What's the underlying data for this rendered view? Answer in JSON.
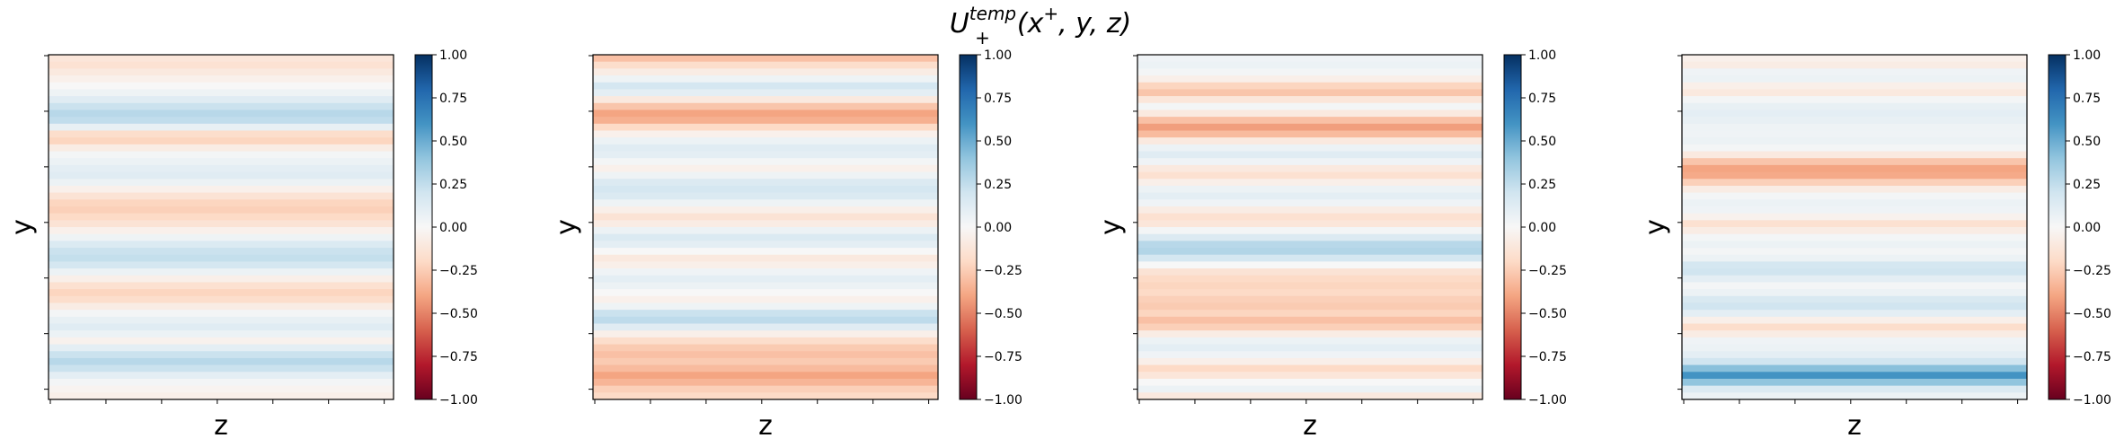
{
  "figure": {
    "title_main": "U",
    "title_sup": "temp",
    "title_sub": "+",
    "title_args_pre": "(x",
    "title_args_sup": "+",
    "title_args_post": ", y, z)"
  },
  "colormap": {
    "name": "RdBu",
    "stops": [
      "#67001f",
      "#b2182b",
      "#d6604d",
      "#f4a582",
      "#fddbc7",
      "#f7f7f7",
      "#d1e5f0",
      "#92c5de",
      "#4393c3",
      "#2166ac",
      "#053061"
    ]
  },
  "chart_data": [
    {
      "type": "heatmap",
      "xlabel": "z",
      "ylabel": "y",
      "vlim": [
        -1.0,
        1.0
      ],
      "colorbar_ticks": [
        "1.00",
        "0.75",
        "0.50",
        "0.25",
        "0.00",
        "−0.25",
        "−0.50",
        "−0.75",
        "−1.00"
      ],
      "colorbar_tick_values": [
        1.0,
        0.75,
        0.5,
        0.25,
        0.0,
        -0.25,
        -0.5,
        -0.75,
        -1.0
      ],
      "row_profile": [
        -0.12,
        -0.15,
        -0.1,
        -0.05,
        0.0,
        0.05,
        0.12,
        0.22,
        0.28,
        0.25,
        0.08,
        -0.18,
        -0.22,
        -0.08,
        0.02,
        0.06,
        0.1,
        0.12,
        0.06,
        -0.05,
        -0.14,
        -0.22,
        -0.24,
        -0.2,
        -0.14,
        -0.05,
        0.05,
        0.15,
        0.22,
        0.24,
        0.18,
        0.06,
        -0.06,
        -0.16,
        -0.22,
        -0.18,
        -0.08,
        0.02,
        0.08,
        0.12,
        0.06,
        -0.04,
        0.1,
        0.22,
        0.28,
        0.22,
        0.1,
        0.02,
        -0.03,
        -0.06
      ]
    },
    {
      "type": "heatmap",
      "xlabel": "z",
      "ylabel": "y",
      "vlim": [
        -1.0,
        1.0
      ],
      "colorbar_ticks": [
        "1.00",
        "0.75",
        "0.50",
        "0.25",
        "0.00",
        "−0.25",
        "−0.50",
        "−0.75",
        "−1.00"
      ],
      "colorbar_tick_values": [
        1.0,
        0.75,
        0.5,
        0.25,
        0.0,
        -0.25,
        -0.5,
        -0.75,
        -1.0
      ],
      "row_profile": [
        -0.3,
        -0.18,
        -0.08,
        0.05,
        0.18,
        0.1,
        -0.1,
        -0.28,
        -0.4,
        -0.36,
        -0.2,
        -0.05,
        0.06,
        0.12,
        0.1,
        0.02,
        -0.05,
        0.05,
        0.14,
        0.18,
        0.15,
        0.05,
        -0.06,
        -0.14,
        -0.08,
        0.06,
        0.15,
        0.1,
        0.0,
        -0.1,
        -0.06,
        0.04,
        0.1,
        0.06,
        0.0,
        -0.05,
        0.05,
        0.22,
        0.26,
        0.12,
        -0.06,
        -0.18,
        -0.26,
        -0.3,
        -0.26,
        -0.32,
        -0.4,
        -0.34,
        -0.24,
        -0.2
      ]
    },
    {
      "type": "heatmap",
      "xlabel": "z",
      "ylabel": "y",
      "vlim": [
        -1.0,
        1.0
      ],
      "colorbar_ticks": [
        "1.00",
        "0.75",
        "0.50",
        "0.25",
        "0.00",
        "−0.25",
        "−0.50",
        "−0.75",
        "−1.00"
      ],
      "colorbar_tick_values": [
        1.0,
        0.75,
        0.5,
        0.25,
        0.0,
        -0.25,
        -0.5,
        -0.75,
        -1.0
      ],
      "row_profile": [
        0.04,
        0.06,
        0.02,
        -0.06,
        -0.22,
        -0.28,
        -0.12,
        0.02,
        -0.1,
        -0.3,
        -0.42,
        -0.32,
        -0.1,
        0.06,
        0.12,
        0.04,
        -0.1,
        -0.16,
        -0.06,
        0.06,
        0.1,
        0.04,
        -0.08,
        -0.16,
        -0.12,
        0.02,
        0.14,
        0.28,
        0.3,
        0.18,
        0.0,
        -0.14,
        -0.2,
        -0.22,
        -0.2,
        -0.24,
        -0.26,
        -0.22,
        -0.3,
        -0.24,
        -0.08,
        0.06,
        0.1,
        0.04,
        -0.06,
        -0.2,
        -0.12,
        0.0,
        0.06,
        -0.1
      ]
    },
    {
      "type": "heatmap",
      "xlabel": "z",
      "ylabel": "y",
      "vlim": [
        -1.0,
        1.0
      ],
      "colorbar_ticks": [
        "1.00",
        "0.75",
        "0.50",
        "0.25",
        "0.00",
        "−0.25",
        "−0.50",
        "−0.75",
        "−1.00"
      ],
      "colorbar_tick_values": [
        1.0,
        0.75,
        0.5,
        0.25,
        0.0,
        -0.25,
        -0.5,
        -0.75,
        -1.0
      ],
      "row_profile": [
        -0.05,
        -0.08,
        0.04,
        0.06,
        -0.06,
        -0.1,
        0.02,
        0.08,
        0.1,
        0.08,
        0.05,
        0.04,
        0.06,
        0.02,
        -0.1,
        -0.28,
        -0.4,
        -0.38,
        -0.24,
        -0.08,
        0.02,
        0.06,
        0.04,
        -0.04,
        -0.16,
        -0.08,
        0.02,
        0.06,
        0.02,
        0.06,
        0.18,
        0.2,
        0.1,
        0.02,
        0.06,
        0.16,
        0.2,
        0.1,
        -0.06,
        -0.18,
        -0.08,
        0.04,
        0.06,
        0.1,
        0.2,
        0.42,
        0.6,
        0.4,
        0.14,
        0.06
      ]
    }
  ]
}
